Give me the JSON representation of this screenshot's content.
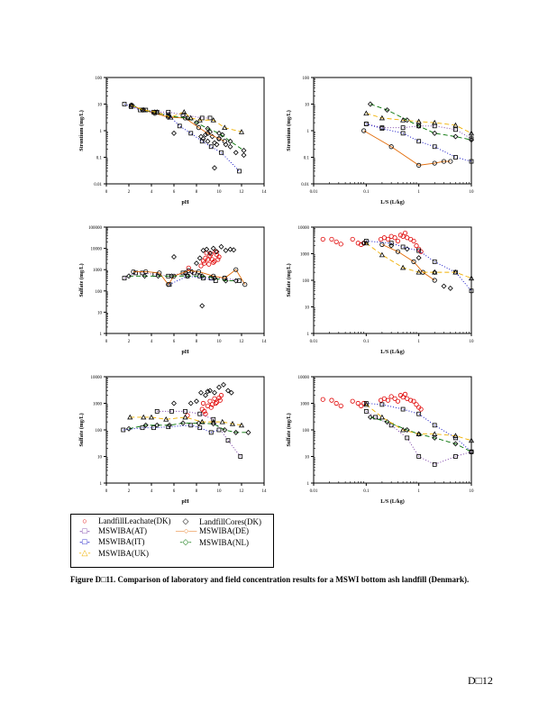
{
  "legend": {
    "items": [
      {
        "label": "LandfillLeachate(DK)",
        "symbol": "circle",
        "color": "#e00000",
        "line": "none"
      },
      {
        "label": "LandfillCores(DK)",
        "symbol": "diamond",
        "color": "#000000",
        "line": "none"
      },
      {
        "label": "MSWIBA(AT)",
        "symbol": "square",
        "color": "#7030a0",
        "line": "dotted"
      },
      {
        "label": "MSWIBA(DE)",
        "symbol": "circle",
        "color": "#e36c09",
        "line": "solid"
      },
      {
        "label": "MSWIBA(IT)",
        "symbol": "square",
        "color": "#0000c0",
        "line": "dotted"
      },
      {
        "label": "MSWIBA(NL)",
        "symbol": "diamond",
        "color": "#007000",
        "line": "dashed"
      },
      {
        "label": "MSWIBA(UK)",
        "symbol": "triangle",
        "color": "#f0b000",
        "line": "dashed"
      }
    ],
    "glyphs": {
      "circle": "○",
      "diamond": "◇",
      "square": "□",
      "triangle": "△"
    }
  },
  "caption": {
    "label": "Figure D□11.",
    "text": "Comparison of laboratory and field concentration results for a MSWI bottom ash landfill (Denmark)."
  },
  "page_number": "D□12",
  "chart_data": [
    {
      "type": "scatter",
      "title": "",
      "xlabel": "pH",
      "ylabel": "Strontium (mg/L)",
      "xscale": "linear",
      "yscale": "log",
      "xlim": [
        0,
        14
      ],
      "ylim": [
        0.01,
        100
      ],
      "xticks": [
        "0",
        "2",
        "4",
        "6",
        "8",
        "10",
        "12",
        "14"
      ],
      "yticks": [
        "0.01",
        "0.1",
        "1",
        "10",
        "100"
      ],
      "series": [
        {
          "name": "LandfillCores(DK)",
          "x": [
            6,
            8.4,
            8.6,
            8.8,
            9,
            9.2,
            9.4,
            9.6,
            9.8,
            10,
            10.3,
            10.6,
            11,
            11.5,
            12.2,
            9.6
          ],
          "y": [
            0.8,
            0.6,
            0.5,
            0.7,
            0.4,
            0.9,
            0.6,
            0.35,
            0.3,
            0.5,
            0.7,
            0.3,
            0.25,
            0.15,
            0.12,
            0.04
          ]
        },
        {
          "name": "MSWIBA(AT)",
          "x": [
            2.2,
            3.5,
            4.5,
            5.5,
            6.8,
            8.5,
            9.2
          ],
          "y": [
            8,
            6,
            5,
            5,
            4,
            3,
            3
          ]
        },
        {
          "name": "MSWIBA(DE)",
          "x": [
            2.2,
            3.3,
            4.3,
            5.5,
            7,
            8.2,
            9,
            10,
            10.5
          ],
          "y": [
            9,
            6,
            4.5,
            3.2,
            3,
            1.3,
            0.8,
            0.5,
            0.4
          ]
        },
        {
          "name": "MSWIBA(IT)",
          "x": [
            1.6,
            3,
            4.2,
            5.5,
            6.5,
            7.5,
            8.5,
            9.3,
            10.2,
            11.8
          ],
          "y": [
            10,
            6,
            5,
            4,
            1.5,
            0.8,
            0.4,
            0.25,
            0.15,
            0.03
          ]
        },
        {
          "name": "MSWIBA(NL)",
          "x": [
            2.3,
            3.2,
            4.3,
            5.5,
            7.2,
            8,
            9,
            10,
            11,
            12.2
          ],
          "y": [
            9,
            6,
            5,
            3.5,
            3,
            2,
            1.2,
            0.8,
            0.4,
            0.18
          ]
        },
        {
          "name": "MSWIBA(UK)",
          "x": [
            2.2,
            3.3,
            4.5,
            5.7,
            6.9,
            7.5,
            8.3,
            9.5,
            10.5,
            12
          ],
          "y": [
            9,
            6,
            5,
            3.2,
            5,
            3,
            2.5,
            2.5,
            1.3,
            0.9
          ]
        }
      ]
    },
    {
      "type": "scatter",
      "title": "",
      "xlabel": "L/S (L/kg)",
      "ylabel": "Strontium (mg/L)",
      "xscale": "log",
      "yscale": "log",
      "xlim": [
        0.01,
        10
      ],
      "ylim": [
        0.01,
        100
      ],
      "xticks": [
        "0.01",
        "0.1",
        "1",
        "10"
      ],
      "yticks": [
        "0.01",
        "0.1",
        "1",
        "10",
        "100"
      ],
      "series": [
        {
          "name": "MSWIBA(AT)",
          "x": [
            0.1,
            0.2,
            0.5,
            1,
            2,
            5,
            10
          ],
          "y": [
            1.8,
            1.3,
            1.3,
            1.5,
            1.5,
            1.1,
            0.5
          ]
        },
        {
          "name": "MSWIBA(DE)",
          "x": [
            0.09,
            0.3,
            1,
            2,
            3,
            4
          ],
          "y": [
            1,
            0.25,
            0.05,
            0.06,
            0.07,
            0.07
          ]
        },
        {
          "name": "MSWIBA(IT)",
          "x": [
            0.1,
            0.2,
            0.5,
            1,
            2,
            5,
            10
          ],
          "y": [
            1.8,
            1.2,
            0.8,
            0.4,
            0.25,
            0.1,
            0.07
          ]
        },
        {
          "name": "MSWIBA(NL)",
          "x": [
            0.12,
            0.25,
            0.6,
            1,
            2,
            5,
            10
          ],
          "y": [
            10,
            6,
            2.5,
            1.5,
            0.8,
            0.6,
            0.45
          ]
        },
        {
          "name": "MSWIBA(UK)",
          "x": [
            0.1,
            0.2,
            0.5,
            1,
            2,
            5,
            10
          ],
          "y": [
            4.5,
            3,
            2.5,
            2.2,
            2,
            1.6,
            0.8
          ]
        }
      ]
    },
    {
      "type": "scatter",
      "title": "",
      "xlabel": "pH",
      "ylabel": "Sulfate (mg/L)",
      "xscale": "linear",
      "yscale": "log",
      "xlim": [
        0,
        14
      ],
      "ylim": [
        1,
        100000
      ],
      "xticks": [
        "0",
        "2",
        "4",
        "6",
        "8",
        "10",
        "12",
        "14"
      ],
      "yticks": [
        "1",
        "10",
        "100",
        "1000",
        "10000",
        "100000"
      ],
      "series": [
        {
          "name": "LandfillLeachate(DK)",
          "x": [
            7.3,
            8.4,
            8.6,
            8.8,
            9,
            9.2,
            9.4,
            9.6,
            9.8,
            10,
            8.7,
            9.1,
            9.5,
            9.9,
            8.9,
            9.3,
            9.7
          ],
          "y": [
            1200,
            1500,
            2500,
            3500,
            3000,
            4500,
            3000,
            2500,
            5000,
            4000,
            2000,
            1800,
            2200,
            3000,
            6000,
            5500,
            7000
          ]
        },
        {
          "name": "LandfillCores(DK)",
          "x": [
            6,
            7,
            7.6,
            8,
            8.3,
            8.6,
            8.9,
            9.2,
            9.5,
            9.8,
            10.2,
            10.6,
            11,
            11.3,
            8.5
          ],
          "y": [
            4000,
            700,
            800,
            2000,
            3500,
            8000,
            9000,
            6000,
            10000,
            7000,
            12000,
            8000,
            9000,
            8500,
            20
          ]
        },
        {
          "name": "MSWIBA(AT)",
          "x": [
            1.6,
            2.6,
            3.2,
            4.3,
            5.5,
            6.8,
            7.8,
            8.3,
            9.3,
            10.5,
            11.8
          ],
          "y": [
            400,
            700,
            700,
            600,
            500,
            700,
            700,
            500,
            400,
            400,
            300
          ]
        },
        {
          "name": "MSWIBA(DE)",
          "x": [
            2.4,
            3.5,
            4.7,
            5.5,
            6,
            7.3,
            8.2,
            9.5,
            10.5,
            11.5,
            12.3
          ],
          "y": [
            800,
            800,
            700,
            200,
            500,
            900,
            800,
            500,
            400,
            1000,
            200
          ]
        },
        {
          "name": "MSWIBA(IT)",
          "x": [
            5.6,
            7.2,
            8.6,
            9.7
          ],
          "y": [
            200,
            500,
            400,
            300
          ]
        },
        {
          "name": "MSWIBA(NL)",
          "x": [
            2,
            3.4,
            4.6,
            5.8,
            7.2,
            8.5,
            9.6,
            10.6,
            11.5
          ],
          "y": [
            500,
            500,
            500,
            500,
            500,
            500,
            400,
            300,
            300
          ]
        }
      ]
    },
    {
      "type": "scatter",
      "title": "",
      "xlabel": "L/S (L/kg)",
      "ylabel": "Sulfate (mg/L)",
      "xscale": "log",
      "yscale": "log",
      "xlim": [
        0.01,
        10
      ],
      "ylim": [
        1,
        10000
      ],
      "xticks": [
        "0.01",
        "0.1",
        "1",
        "10"
      ],
      "yticks": [
        "1",
        "10",
        "100",
        "1000",
        "10000"
      ],
      "series": [
        {
          "name": "LandfillLeachate(DK)",
          "x": [
            0.015,
            0.022,
            0.027,
            0.033,
            0.055,
            0.07,
            0.08,
            0.09,
            0.19,
            0.22,
            0.26,
            0.3,
            0.35,
            0.4,
            0.45,
            0.5,
            0.55,
            0.6,
            0.7,
            0.8,
            0.9,
            1,
            1.1
          ],
          "y": [
            3500,
            3500,
            2800,
            2300,
            3500,
            2500,
            2200,
            2500,
            3500,
            4000,
            3500,
            4500,
            4000,
            3000,
            5000,
            4500,
            6000,
            4000,
            3500,
            3000,
            2000,
            1500,
            1200
          ]
        },
        {
          "name": "LandfillCores(DK)",
          "x": [
            0.09,
            0.3,
            0.6,
            1,
            2,
            3,
            4
          ],
          "y": [
            2500,
            2000,
            1500,
            700,
            200,
            60,
            50
          ]
        },
        {
          "name": "MSWIBA(DE)",
          "x": [
            0.2,
            0.4,
            0.8,
            1.2,
            2
          ],
          "y": [
            2200,
            1200,
            500,
            200,
            100
          ]
        },
        {
          "name": "MSWIBA(IT)",
          "x": [
            0.1,
            0.3,
            0.5,
            1,
            2,
            5,
            10
          ],
          "y": [
            3000,
            2500,
            1800,
            1300,
            500,
            200,
            40
          ]
        },
        {
          "name": "MSWIBA(UK)",
          "x": [
            0.1,
            0.2,
            0.5,
            1,
            2,
            5,
            10
          ],
          "y": [
            2500,
            900,
            300,
            200,
            200,
            200,
            120
          ]
        }
      ]
    },
    {
      "type": "scatter",
      "title": "",
      "xlabel": "pH",
      "ylabel": "Sulfate (mg/L)",
      "xscale": "linear",
      "yscale": "log",
      "xlim": [
        0,
        14
      ],
      "ylim": [
        1,
        10000
      ],
      "xticks": [
        "0",
        "2",
        "4",
        "6",
        "8",
        "10",
        "12",
        "14"
      ],
      "yticks": [
        "1",
        "10",
        "100",
        "1000",
        "10000"
      ],
      "series": [
        {
          "name": "LandfillLeachate(DK)",
          "x": [
            7.2,
            8.5,
            8.7,
            9,
            9.2,
            9.4,
            9.6,
            9.8,
            10,
            10.2,
            8.8,
            9.3,
            9.7,
            10.1,
            8.6
          ],
          "y": [
            350,
            600,
            500,
            800,
            1200,
            900,
            1500,
            1100,
            1600,
            2000,
            400,
            700,
            1000,
            1300,
            1000
          ]
        },
        {
          "name": "LandfillCores(DK)",
          "x": [
            6,
            7.5,
            8,
            8.4,
            8.8,
            9.2,
            9.6,
            10,
            10.4,
            10.8,
            11.1,
            9
          ],
          "y": [
            1000,
            1000,
            1200,
            2500,
            2000,
            3000,
            2500,
            4000,
            5000,
            3000,
            2500,
            2800
          ]
        },
        {
          "name": "MSWIBA(AT)",
          "x": [
            4.5,
            5.8,
            7,
            8.3,
            9.5,
            10.8,
            11.9
          ],
          "y": [
            500,
            500,
            500,
            400,
            250,
            40,
            10
          ]
        },
        {
          "name": "MSWIBA(IT)",
          "x": [
            1.5,
            3.2,
            4.2,
            5.5,
            7.5,
            8.3,
            9.3,
            10
          ],
          "y": [
            100,
            120,
            120,
            130,
            150,
            120,
            80,
            100
          ]
        },
        {
          "name": "MSWIBA(NL)",
          "x": [
            2,
            3.5,
            4.5,
            5.6,
            6.8,
            8.2,
            9.5,
            10.5,
            11.5,
            12.6
          ],
          "y": [
            110,
            150,
            150,
            150,
            180,
            180,
            170,
            100,
            80,
            80
          ]
        },
        {
          "name": "MSWIBA(UK)",
          "x": [
            2.1,
            3.3,
            4,
            5.3,
            7,
            8.5,
            9.5,
            10.3,
            11.2,
            12
          ],
          "y": [
            300,
            300,
            300,
            250,
            300,
            200,
            200,
            200,
            170,
            150
          ]
        }
      ]
    },
    {
      "type": "scatter",
      "title": "",
      "xlabel": "L/S (L/kg)",
      "ylabel": "Sulfate (mg/L)",
      "xscale": "log",
      "yscale": "log",
      "xlim": [
        0.01,
        10
      ],
      "ylim": [
        1,
        10000
      ],
      "xticks": [
        "0.01",
        "0.1",
        "1",
        "10"
      ],
      "yticks": [
        "1",
        "10",
        "100",
        "1000",
        "10000"
      ],
      "series": [
        {
          "name": "LandfillLeachate(DK)",
          "x": [
            0.015,
            0.022,
            0.027,
            0.033,
            0.055,
            0.07,
            0.08,
            0.09,
            0.19,
            0.22,
            0.26,
            0.3,
            0.35,
            0.4,
            0.45,
            0.5,
            0.55,
            0.6,
            0.7,
            0.8,
            0.9,
            1,
            1.1
          ],
          "y": [
            1400,
            1300,
            1000,
            800,
            1200,
            1000,
            800,
            1000,
            1300,
            1500,
            1300,
            1800,
            1500,
            1200,
            2000,
            1700,
            2200,
            1500,
            1300,
            1200,
            900,
            700,
            600
          ]
        },
        {
          "name": "MSWIBA(AT)",
          "x": [
            0.1,
            0.15,
            0.3,
            0.6,
            1,
            2,
            5,
            10
          ],
          "y": [
            500,
            300,
            150,
            50,
            10,
            5,
            10,
            15
          ]
        },
        {
          "name": "MSWIBA(IT)",
          "x": [
            0.1,
            0.2,
            0.5,
            1,
            2,
            5,
            10
          ],
          "y": [
            1000,
            900,
            600,
            400,
            150,
            50,
            15
          ]
        },
        {
          "name": "MSWIBA(NL)",
          "x": [
            0.12,
            0.25,
            0.6,
            1,
            2,
            5,
            10
          ],
          "y": [
            300,
            200,
            100,
            70,
            50,
            30,
            15
          ]
        },
        {
          "name": "MSWIBA(UK)",
          "x": [
            0.1,
            0.2,
            0.5,
            1,
            2,
            5,
            10
          ],
          "y": [
            900,
            300,
            100,
            70,
            70,
            60,
            40
          ]
        }
      ]
    }
  ]
}
